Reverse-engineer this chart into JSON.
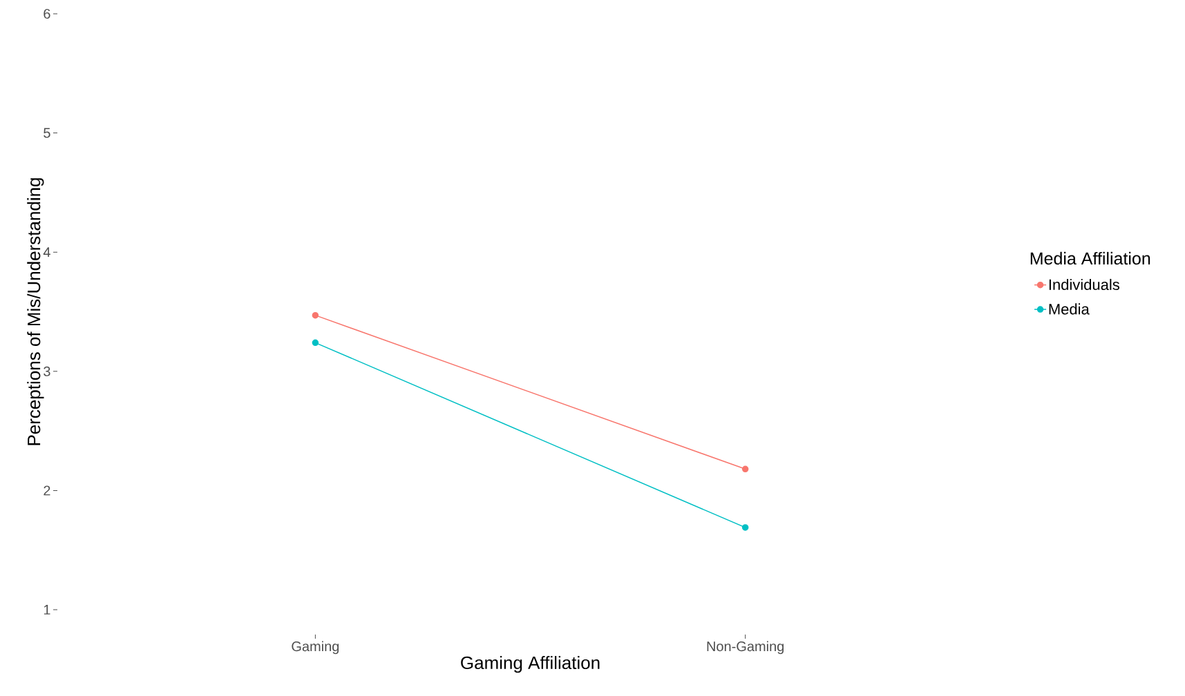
{
  "chart_data": {
    "type": "line",
    "xlabel": "Gaming Affiliation",
    "ylabel": "Perceptions of Mis/Understanding",
    "legend_title": "Media Affiliation",
    "categories": [
      "Gaming",
      "Non-Gaming"
    ],
    "series": [
      {
        "name": "Individuals",
        "color": "#f8766d",
        "values": [
          3.47,
          2.18
        ]
      },
      {
        "name": "Media",
        "color": "#00bfc4",
        "values": [
          3.24,
          1.69
        ]
      }
    ],
    "ylim": [
      1,
      6
    ],
    "yticks": [
      1,
      2,
      3,
      4,
      5,
      6
    ],
    "legend": "right",
    "marker": "circle",
    "line_style": "solid"
  }
}
